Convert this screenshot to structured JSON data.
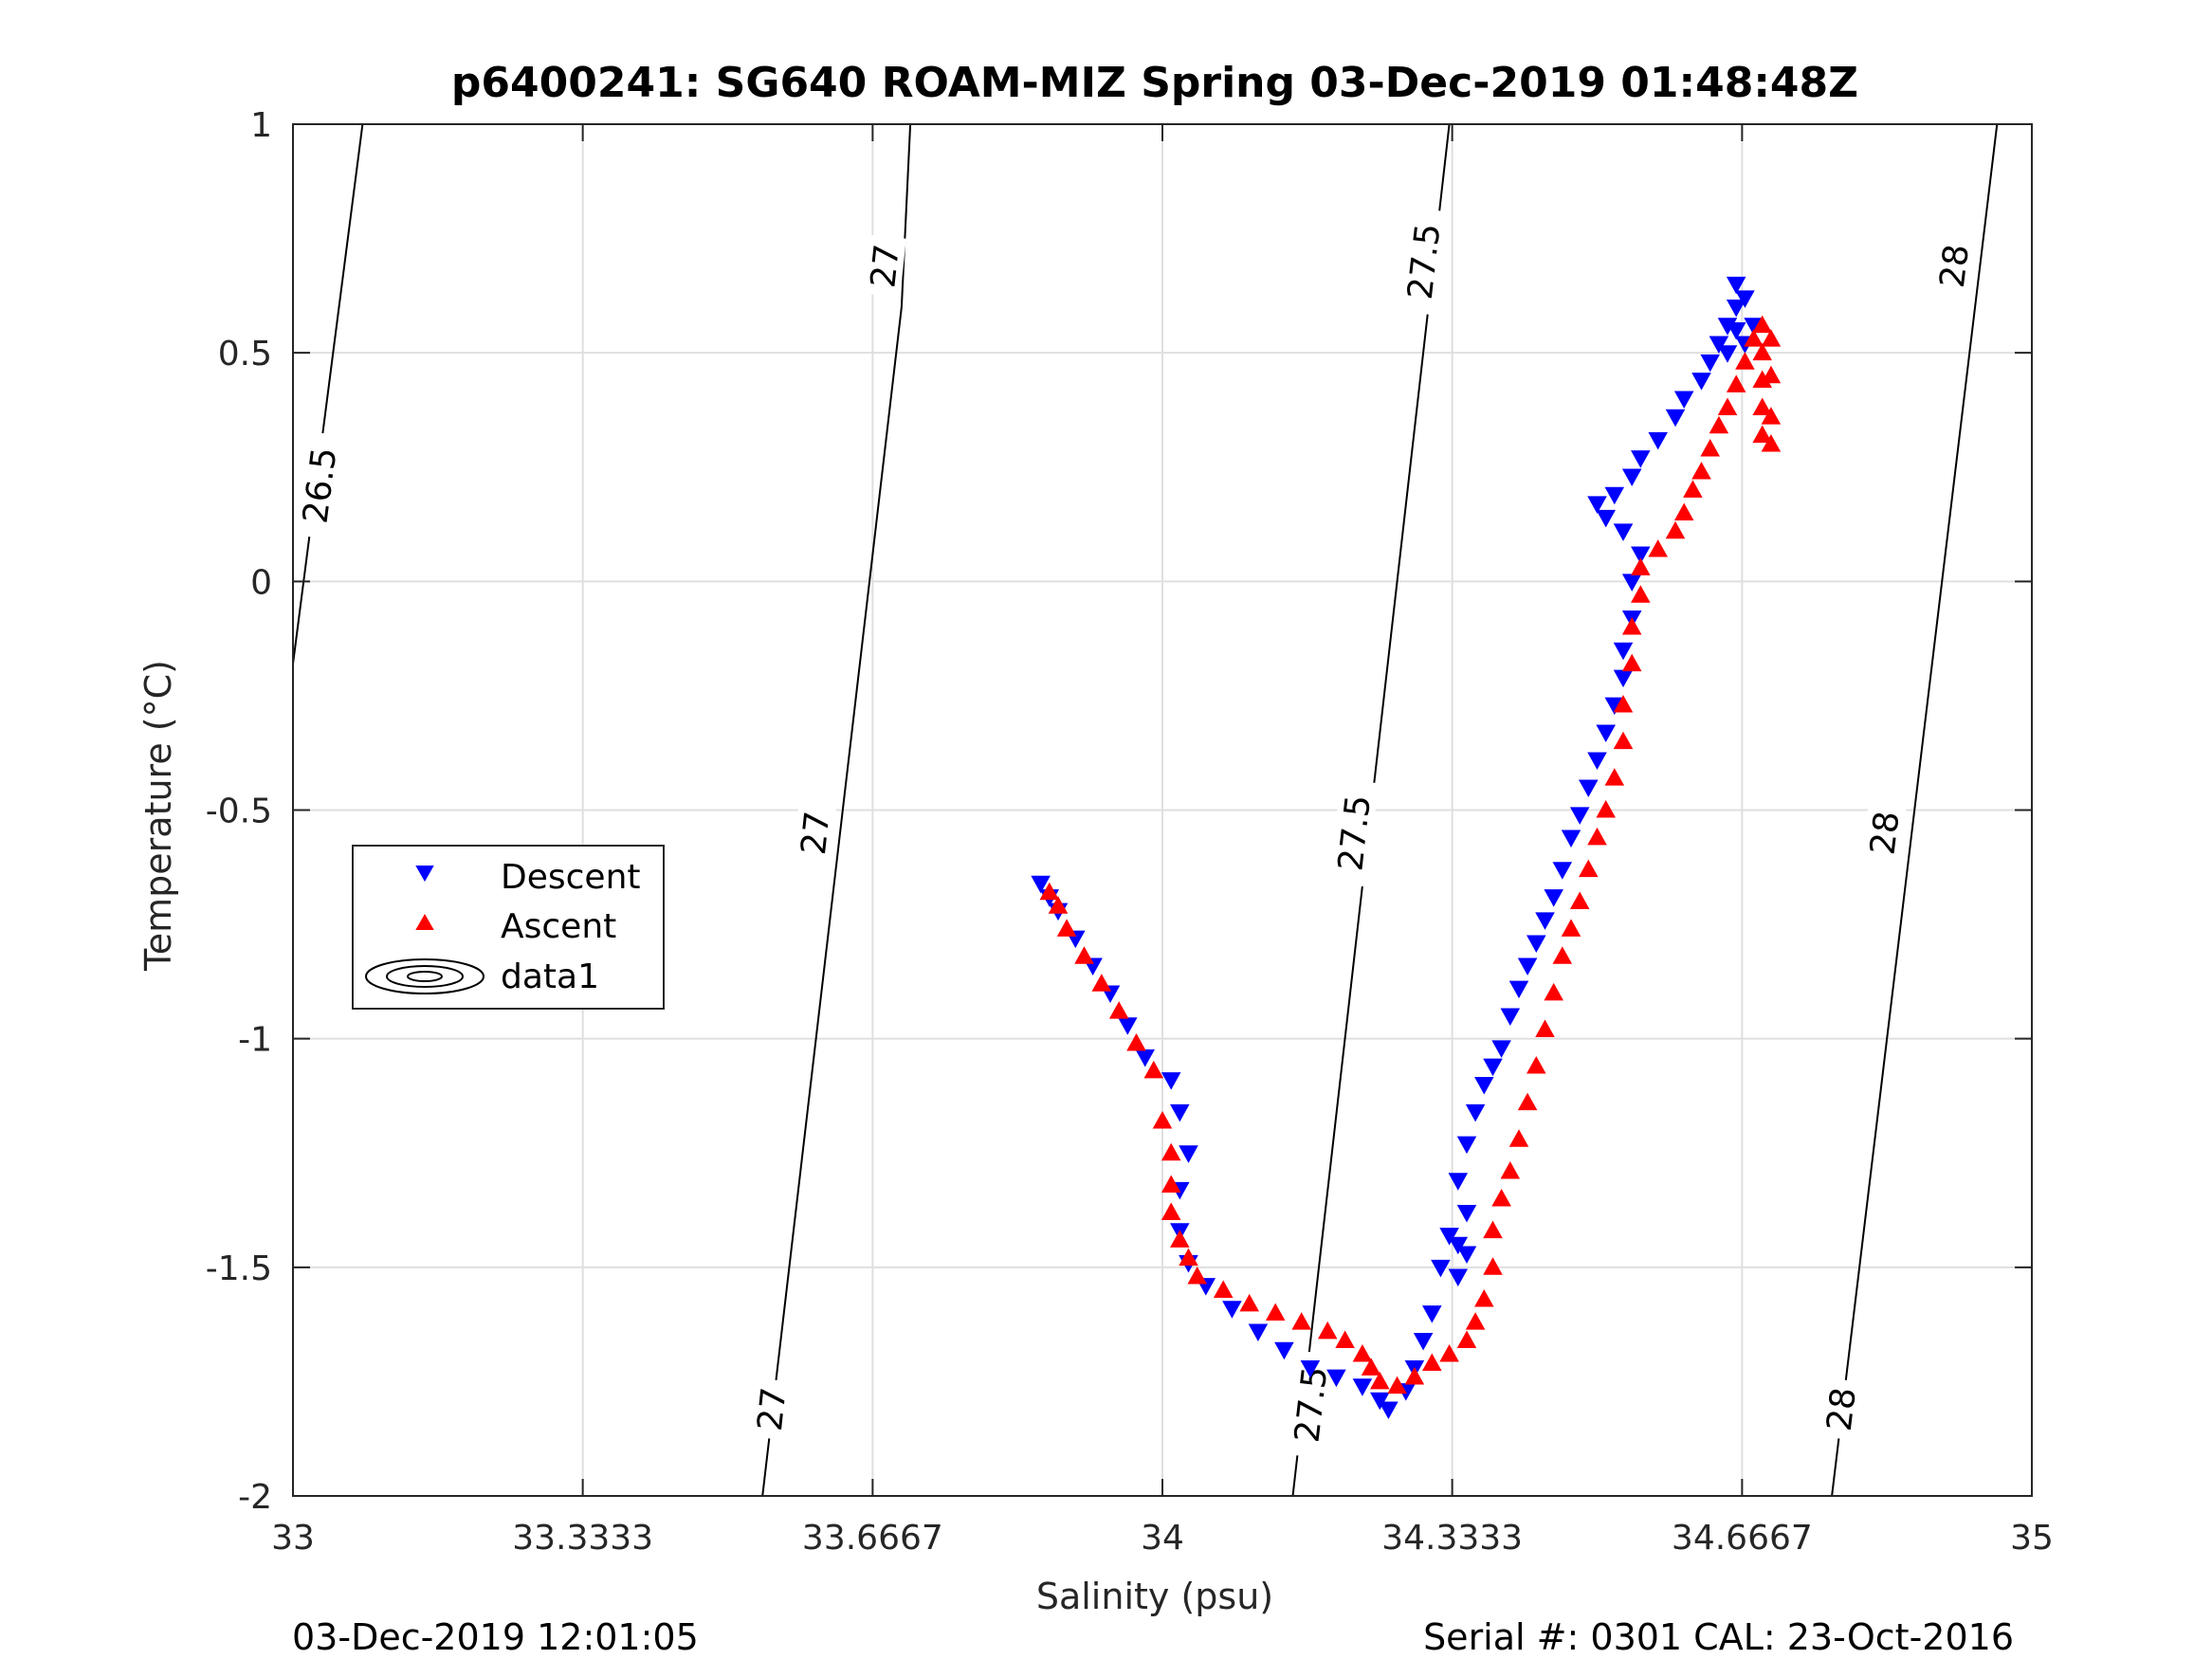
{
  "chart_data": {
    "type": "scatter",
    "title": "p6400241: SG640 ROAM-MIZ Spring 03-Dec-2019 01:48:48Z",
    "xlabel": "Salinity (psu)",
    "ylabel": "Temperature (°C)",
    "xlim": [
      33,
      35
    ],
    "ylim": [
      -2,
      1
    ],
    "x_ticks": [
      33,
      33.3333,
      33.6667,
      34,
      34.3333,
      34.6667,
      35
    ],
    "x_tick_labels": [
      "33",
      "33.3333",
      "33.6667",
      "34",
      "34.3333",
      "34.6667",
      "35"
    ],
    "y_ticks": [
      -2,
      -1.5,
      -1,
      -0.5,
      0,
      0.5,
      1
    ],
    "y_tick_labels": [
      "-2",
      "-1.5",
      "-1",
      "-0.5",
      "0",
      "0.5",
      "1"
    ],
    "grid": true,
    "legend_position": "middle-left",
    "series": [
      {
        "name": "Descent",
        "marker": "triangle-down",
        "color": "#0000ff",
        "points": [
          [
            33.86,
            -0.66
          ],
          [
            33.87,
            -0.69
          ],
          [
            33.88,
            -0.72
          ],
          [
            33.9,
            -0.78
          ],
          [
            33.92,
            -0.84
          ],
          [
            33.94,
            -0.9
          ],
          [
            33.96,
            -0.97
          ],
          [
            33.98,
            -1.04
          ],
          [
            34.01,
            -1.09
          ],
          [
            34.02,
            -1.16
          ],
          [
            34.03,
            -1.25
          ],
          [
            34.02,
            -1.33
          ],
          [
            34.02,
            -1.42
          ],
          [
            34.03,
            -1.49
          ],
          [
            34.05,
            -1.54
          ],
          [
            34.08,
            -1.59
          ],
          [
            34.11,
            -1.64
          ],
          [
            34.14,
            -1.68
          ],
          [
            34.17,
            -1.72
          ],
          [
            34.2,
            -1.74
          ],
          [
            34.23,
            -1.76
          ],
          [
            34.25,
            -1.79
          ],
          [
            34.26,
            -1.81
          ],
          [
            34.28,
            -1.77
          ],
          [
            34.29,
            -1.72
          ],
          [
            34.3,
            -1.66
          ],
          [
            34.31,
            -1.6
          ],
          [
            34.32,
            -1.5
          ],
          [
            34.33,
            -1.43
          ],
          [
            34.34,
            -1.45
          ],
          [
            34.34,
            -1.52
          ],
          [
            34.35,
            -1.47
          ],
          [
            34.35,
            -1.38
          ],
          [
            34.34,
            -1.31
          ],
          [
            34.35,
            -1.23
          ],
          [
            34.36,
            -1.16
          ],
          [
            34.37,
            -1.1
          ],
          [
            34.38,
            -1.06
          ],
          [
            34.39,
            -1.02
          ],
          [
            34.4,
            -0.95
          ],
          [
            34.41,
            -0.89
          ],
          [
            34.42,
            -0.84
          ],
          [
            34.43,
            -0.79
          ],
          [
            34.44,
            -0.74
          ],
          [
            34.45,
            -0.69
          ],
          [
            34.46,
            -0.63
          ],
          [
            34.47,
            -0.56
          ],
          [
            34.48,
            -0.51
          ],
          [
            34.49,
            -0.45
          ],
          [
            34.5,
            -0.39
          ],
          [
            34.51,
            -0.33
          ],
          [
            34.52,
            -0.27
          ],
          [
            34.53,
            -0.21
          ],
          [
            34.53,
            -0.15
          ],
          [
            34.54,
            -0.08
          ],
          [
            34.54,
            0.0
          ],
          [
            34.55,
            0.06
          ],
          [
            34.53,
            0.11
          ],
          [
            34.51,
            0.14
          ],
          [
            34.5,
            0.17
          ],
          [
            34.52,
            0.19
          ],
          [
            34.54,
            0.23
          ],
          [
            34.55,
            0.27
          ],
          [
            34.57,
            0.31
          ],
          [
            34.59,
            0.36
          ],
          [
            34.6,
            0.4
          ],
          [
            34.62,
            0.44
          ],
          [
            34.63,
            0.48
          ],
          [
            34.64,
            0.52
          ],
          [
            34.65,
            0.56
          ],
          [
            34.66,
            0.6
          ],
          [
            34.66,
            0.65
          ],
          [
            34.67,
            0.62
          ],
          [
            34.66,
            0.55
          ],
          [
            34.65,
            0.5
          ],
          [
            34.67,
            0.52
          ],
          [
            34.68,
            0.56
          ]
        ]
      },
      {
        "name": "Ascent",
        "marker": "triangle-up",
        "color": "#ff0000",
        "points": [
          [
            33.87,
            -0.68
          ],
          [
            33.88,
            -0.71
          ],
          [
            33.89,
            -0.76
          ],
          [
            33.91,
            -0.82
          ],
          [
            33.93,
            -0.88
          ],
          [
            33.95,
            -0.94
          ],
          [
            33.97,
            -1.01
          ],
          [
            33.99,
            -1.07
          ],
          [
            34.0,
            -1.18
          ],
          [
            34.01,
            -1.25
          ],
          [
            34.01,
            -1.32
          ],
          [
            34.01,
            -1.38
          ],
          [
            34.02,
            -1.44
          ],
          [
            34.03,
            -1.48
          ],
          [
            34.04,
            -1.52
          ],
          [
            34.07,
            -1.55
          ],
          [
            34.1,
            -1.58
          ],
          [
            34.13,
            -1.6
          ],
          [
            34.16,
            -1.62
          ],
          [
            34.19,
            -1.64
          ],
          [
            34.21,
            -1.66
          ],
          [
            34.23,
            -1.69
          ],
          [
            34.24,
            -1.72
          ],
          [
            34.25,
            -1.75
          ],
          [
            34.27,
            -1.76
          ],
          [
            34.29,
            -1.74
          ],
          [
            34.31,
            -1.71
          ],
          [
            34.33,
            -1.69
          ],
          [
            34.35,
            -1.66
          ],
          [
            34.36,
            -1.62
          ],
          [
            34.37,
            -1.57
          ],
          [
            34.38,
            -1.5
          ],
          [
            34.38,
            -1.42
          ],
          [
            34.39,
            -1.35
          ],
          [
            34.4,
            -1.29
          ],
          [
            34.41,
            -1.22
          ],
          [
            34.42,
            -1.14
          ],
          [
            34.43,
            -1.06
          ],
          [
            34.44,
            -0.98
          ],
          [
            34.45,
            -0.9
          ],
          [
            34.46,
            -0.82
          ],
          [
            34.47,
            -0.76
          ],
          [
            34.48,
            -0.7
          ],
          [
            34.49,
            -0.63
          ],
          [
            34.5,
            -0.56
          ],
          [
            34.51,
            -0.5
          ],
          [
            34.52,
            -0.43
          ],
          [
            34.53,
            -0.35
          ],
          [
            34.53,
            -0.27
          ],
          [
            34.54,
            -0.18
          ],
          [
            34.54,
            -0.1
          ],
          [
            34.55,
            -0.03
          ],
          [
            34.55,
            0.03
          ],
          [
            34.57,
            0.07
          ],
          [
            34.59,
            0.11
          ],
          [
            34.6,
            0.15
          ],
          [
            34.61,
            0.2
          ],
          [
            34.62,
            0.24
          ],
          [
            34.63,
            0.29
          ],
          [
            34.64,
            0.34
          ],
          [
            34.65,
            0.38
          ],
          [
            34.66,
            0.43
          ],
          [
            34.67,
            0.48
          ],
          [
            34.68,
            0.53
          ],
          [
            34.69,
            0.56
          ],
          [
            34.69,
            0.5
          ],
          [
            34.69,
            0.44
          ],
          [
            34.69,
            0.38
          ],
          [
            34.69,
            0.32
          ],
          [
            34.7,
            0.3
          ],
          [
            34.7,
            0.36
          ],
          [
            34.7,
            0.45
          ],
          [
            34.7,
            0.53
          ]
        ]
      },
      {
        "name": "data1",
        "marker": "contour",
        "color": "#000000"
      }
    ],
    "isopycnals": [
      {
        "level": "26.5",
        "points": [
          [
            33.0,
            -0.18
          ],
          [
            33.08,
            1.0
          ]
        ],
        "labels": [
          {
            "text": "26.5",
            "at": [
              33.03,
              0.21
            ]
          }
        ]
      },
      {
        "level": "27",
        "points": [
          [
            33.54,
            -2.0
          ],
          [
            33.7,
            0.6
          ],
          [
            33.7,
            0.6
          ],
          [
            33.71,
            1.0
          ]
        ],
        "labels": [
          {
            "text": "27",
            "at": [
              33.55,
              -1.81
            ]
          },
          {
            "text": "27",
            "at": [
              33.6,
              -0.55
            ]
          },
          {
            "text": "27",
            "at": [
              33.68,
              0.69
            ]
          }
        ]
      },
      {
        "level": "27.5",
        "points": [
          [
            34.15,
            -2.0
          ],
          [
            34.33,
            1.0
          ]
        ],
        "labels": [
          {
            "text": "27.5",
            "at": [
              34.17,
              -1.8
            ]
          },
          {
            "text": "27.5",
            "at": [
              34.22,
              -0.55
            ]
          },
          {
            "text": "27.5",
            "at": [
              34.3,
              0.7
            ]
          }
        ]
      },
      {
        "level": "28",
        "points": [
          [
            34.77,
            -2.0
          ],
          [
            34.96,
            1.0
          ]
        ],
        "labels": [
          {
            "text": "28",
            "at": [
              34.78,
              -1.81
            ]
          },
          {
            "text": "28",
            "at": [
              34.83,
              -0.55
            ]
          },
          {
            "text": "28",
            "at": [
              34.91,
              0.69
            ]
          }
        ]
      }
    ]
  },
  "footer": {
    "left": "03-Dec-2019 12:01:05",
    "right": "Serial #: 0301  CAL: 23-Oct-2016"
  }
}
